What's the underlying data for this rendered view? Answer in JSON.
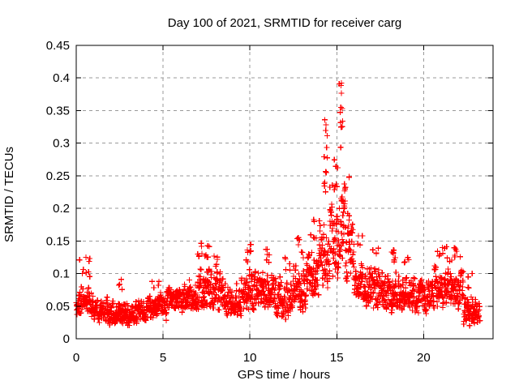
{
  "chart_data": {
    "type": "scatter",
    "title": "Day 100 of 2021, SRMTID for receiver carg",
    "xlabel": "GPS time / hours",
    "ylabel": "SRMTID / TECUs",
    "xlim": [
      0,
      24
    ],
    "ylim": [
      0,
      0.45
    ],
    "x_ticks": [
      {
        "v": 0,
        "label": "0"
      },
      {
        "v": 5,
        "label": "5"
      },
      {
        "v": 10,
        "label": "10"
      },
      {
        "v": 15,
        "label": "15"
      },
      {
        "v": 20,
        "label": "20"
      }
    ],
    "y_ticks": [
      {
        "v": 0,
        "label": "0"
      },
      {
        "v": 0.05,
        "label": "0.05"
      },
      {
        "v": 0.1,
        "label": "0.1"
      },
      {
        "v": 0.15,
        "label": "0.15"
      },
      {
        "v": 0.2,
        "label": "0.2"
      },
      {
        "v": 0.25,
        "label": "0.25"
      },
      {
        "v": 0.3,
        "label": "0.3"
      },
      {
        "v": 0.35,
        "label": "0.35"
      },
      {
        "v": 0.4,
        "label": "0.4"
      },
      {
        "v": 0.45,
        "label": "0.45"
      }
    ],
    "grid": true,
    "legend": "none",
    "marker": "plus",
    "colors": {
      "marker": "#ff0000",
      "grid": "#9a9a9a",
      "axis": "#000000",
      "background": "#ffffff"
    },
    "data_span_hours": [
      0,
      23.25
    ],
    "peak": {
      "x": 15.1,
      "y": 0.41
    },
    "bands_format": [
      "t_start",
      "t_end",
      "n_points",
      "v_low",
      "v_high"
    ],
    "bands": [
      [
        0.0,
        0.3,
        28,
        0.03,
        0.095
      ],
      [
        0.3,
        0.9,
        50,
        0.03,
        0.085
      ],
      [
        0.9,
        1.5,
        52,
        0.025,
        0.07
      ],
      [
        1.5,
        2.5,
        85,
        0.02,
        0.068
      ],
      [
        2.5,
        3.5,
        85,
        0.02,
        0.065
      ],
      [
        3.5,
        4.5,
        85,
        0.025,
        0.068
      ],
      [
        4.5,
        5.2,
        60,
        0.03,
        0.072
      ],
      [
        5.2,
        6.2,
        85,
        0.035,
        0.085
      ],
      [
        6.2,
        7.0,
        70,
        0.04,
        0.1
      ],
      [
        7.0,
        7.8,
        70,
        0.04,
        0.125
      ],
      [
        7.8,
        8.5,
        62,
        0.04,
        0.115
      ],
      [
        8.5,
        9.5,
        85,
        0.03,
        0.095
      ],
      [
        9.5,
        10.5,
        85,
        0.04,
        0.115
      ],
      [
        10.5,
        11.5,
        85,
        0.04,
        0.11
      ],
      [
        11.5,
        12.5,
        85,
        0.03,
        0.105
      ],
      [
        12.5,
        13.3,
        70,
        0.04,
        0.125
      ],
      [
        13.3,
        14.0,
        62,
        0.05,
        0.155
      ],
      [
        14.0,
        14.6,
        55,
        0.07,
        0.2
      ],
      [
        14.6,
        15.1,
        48,
        0.08,
        0.225
      ],
      [
        15.1,
        15.45,
        35,
        0.1,
        0.265
      ],
      [
        15.45,
        16.0,
        50,
        0.08,
        0.22
      ],
      [
        16.0,
        16.6,
        55,
        0.05,
        0.14
      ],
      [
        16.6,
        17.5,
        80,
        0.04,
        0.125
      ],
      [
        17.5,
        18.5,
        85,
        0.04,
        0.115
      ],
      [
        18.5,
        19.5,
        85,
        0.04,
        0.11
      ],
      [
        19.5,
        20.5,
        85,
        0.035,
        0.1
      ],
      [
        20.5,
        21.5,
        85,
        0.04,
        0.12
      ],
      [
        21.5,
        22.3,
        70,
        0.04,
        0.12
      ],
      [
        22.3,
        23.25,
        80,
        0.02,
        0.07
      ]
    ],
    "clusters_format": [
      "t_start",
      "t_end",
      "n_points",
      "v_low",
      "v_high"
    ],
    "clusters": [
      [
        0.15,
        0.85,
        9,
        0.095,
        0.128
      ],
      [
        2.3,
        2.7,
        4,
        0.075,
        0.095
      ],
      [
        4.3,
        4.8,
        4,
        0.075,
        0.09
      ],
      [
        6.9,
        7.7,
        12,
        0.12,
        0.155
      ],
      [
        7.9,
        8.3,
        5,
        0.11,
        0.13
      ],
      [
        9.7,
        10.3,
        9,
        0.115,
        0.15
      ],
      [
        10.8,
        11.3,
        6,
        0.11,
        0.14
      ],
      [
        12.0,
        12.4,
        5,
        0.105,
        0.13
      ],
      [
        12.7,
        13.2,
        7,
        0.12,
        0.16
      ],
      [
        13.5,
        14.0,
        7,
        0.15,
        0.19
      ],
      [
        14.25,
        14.55,
        13,
        0.22,
        0.34
      ],
      [
        14.6,
        15.05,
        9,
        0.225,
        0.3
      ],
      [
        15.1,
        15.35,
        12,
        0.28,
        0.412
      ],
      [
        15.45,
        15.8,
        5,
        0.22,
        0.26
      ],
      [
        16.2,
        16.5,
        4,
        0.135,
        0.16
      ],
      [
        17.0,
        17.4,
        4,
        0.125,
        0.145
      ],
      [
        18.0,
        18.5,
        8,
        0.115,
        0.14
      ],
      [
        18.8,
        19.2,
        4,
        0.11,
        0.125
      ],
      [
        20.8,
        21.4,
        8,
        0.12,
        0.145
      ],
      [
        21.6,
        22.25,
        8,
        0.12,
        0.15
      ],
      [
        22.4,
        22.8,
        4,
        0.075,
        0.105
      ]
    ]
  }
}
